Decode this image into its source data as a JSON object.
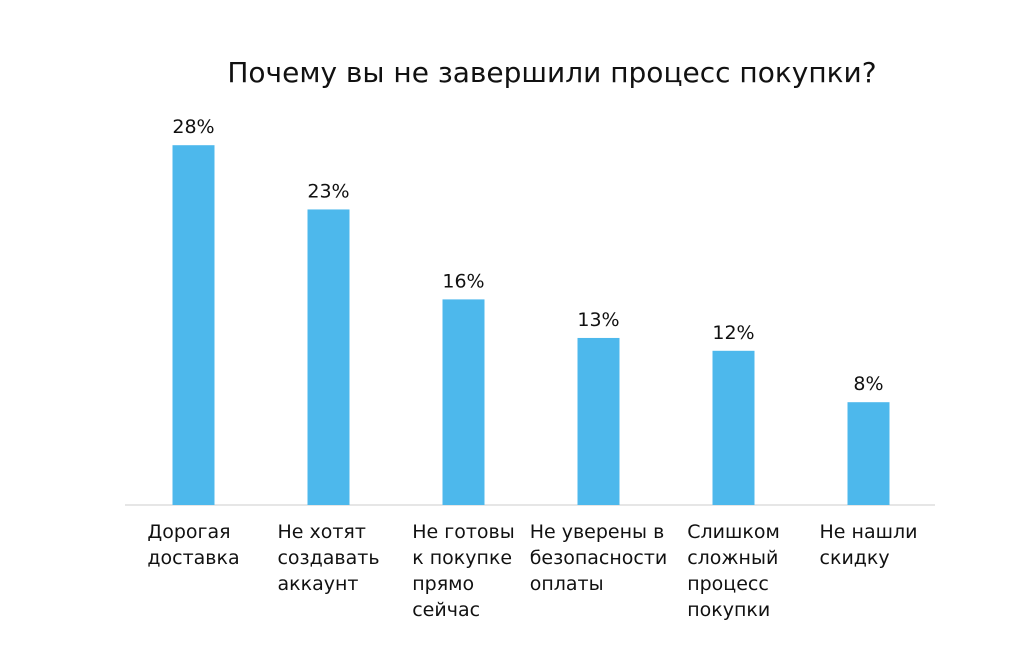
{
  "chart_data": {
    "type": "bar",
    "title": "Почему вы не завершили процесс покупки?",
    "categories": [
      "Дорогая\nдоставка",
      "Не хотят\nсоздавать\nаккаунт",
      "Не готовы\nк покупке\nпрямо\nсейчас",
      "Не уверены в\nбезопасности\nоплаты",
      "Слишком\nсложный\nпроцесс\nпокупки",
      "Не нашли\nскидку"
    ],
    "values": [
      28,
      23,
      16,
      13,
      12,
      8
    ],
    "value_labels": [
      "28%",
      "23%",
      "16%",
      "13%",
      "12%",
      "8%"
    ],
    "color": "#4db8ec"
  }
}
